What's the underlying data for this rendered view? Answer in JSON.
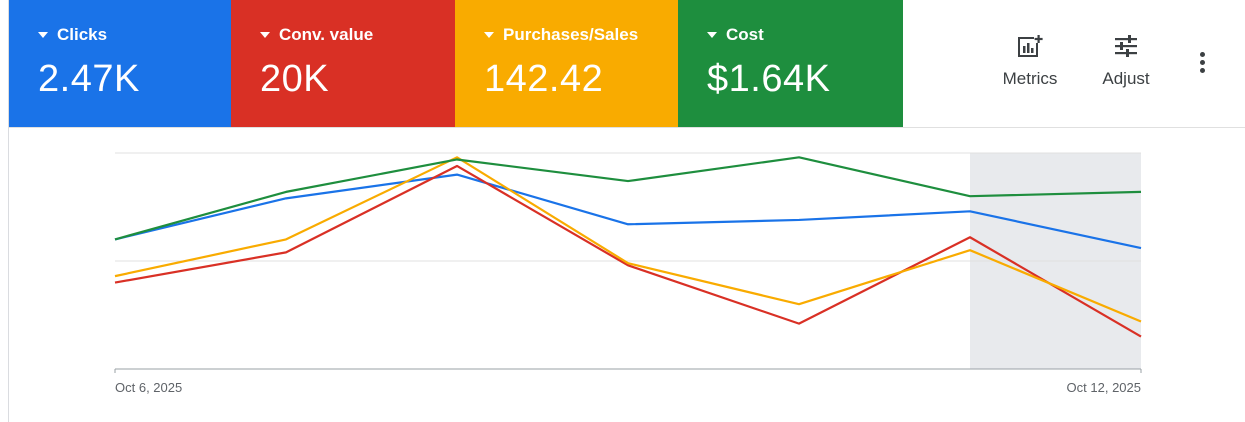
{
  "scorecards": [
    {
      "label": "Clicks",
      "value": "2.47K",
      "color": "#1a73e8"
    },
    {
      "label": "Conv. value",
      "value": "20K",
      "color": "#d93025"
    },
    {
      "label": "Purchases/Sales",
      "value": "142.42",
      "color": "#f9ab00"
    },
    {
      "label": "Cost",
      "value": "$1.64K",
      "color": "#1e8e3e"
    }
  ],
  "toolbar": {
    "metrics_label": "Metrics",
    "adjust_label": "Adjust",
    "metrics_icon": "add-chart-icon",
    "adjust_icon": "tune-icon",
    "more_icon": "more-vert-icon"
  },
  "chart_data": {
    "type": "line",
    "x": [
      "Oct 6, 2025",
      "Oct 7, 2025",
      "Oct 8, 2025",
      "Oct 9, 2025",
      "Oct 10, 2025",
      "Oct 11, 2025",
      "Oct 12, 2025"
    ],
    "x_tick_labels": [
      "Oct 6, 2025",
      "Oct 12, 2025"
    ],
    "normalized": true,
    "ylim": [
      0,
      1
    ],
    "grid": true,
    "highlighted_range": [
      "Oct 11, 2025",
      "Oct 12, 2025"
    ],
    "series": [
      {
        "metric": "Clicks",
        "color": "#1a73e8",
        "values": [
          0.6,
          0.79,
          0.9,
          0.67,
          0.69,
          0.73,
          0.56
        ]
      },
      {
        "metric": "Conv. value",
        "color": "#d93025",
        "values": [
          0.4,
          0.54,
          0.94,
          0.48,
          0.21,
          0.61,
          0.15
        ]
      },
      {
        "metric": "Purchases/Sales",
        "color": "#f9ab00",
        "values": [
          0.43,
          0.6,
          0.98,
          0.49,
          0.3,
          0.55,
          0.22
        ]
      },
      {
        "metric": "Cost",
        "color": "#1e8e3e",
        "values": [
          0.6,
          0.82,
          0.97,
          0.87,
          0.98,
          0.8,
          0.82
        ]
      }
    ]
  }
}
